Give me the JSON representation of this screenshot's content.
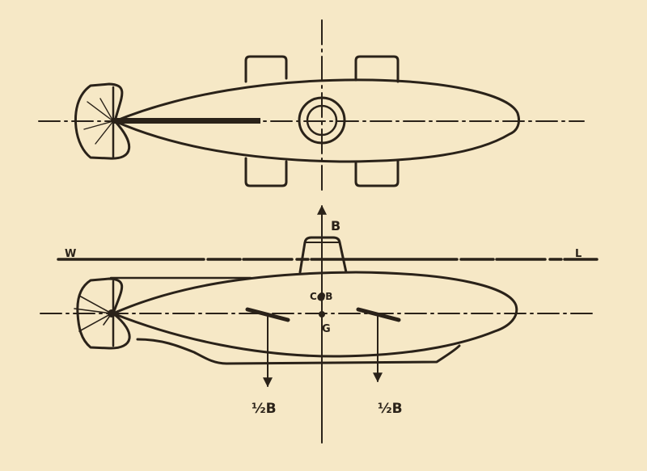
{
  "colors": {
    "background": "#f6e8c6",
    "ink": "#2a2219"
  },
  "labels": {
    "w": "W",
    "l": "L",
    "b_top": "B",
    "cob": "C●B",
    "g": "G",
    "half_b_left": "½B",
    "half_b_right": "½B"
  }
}
